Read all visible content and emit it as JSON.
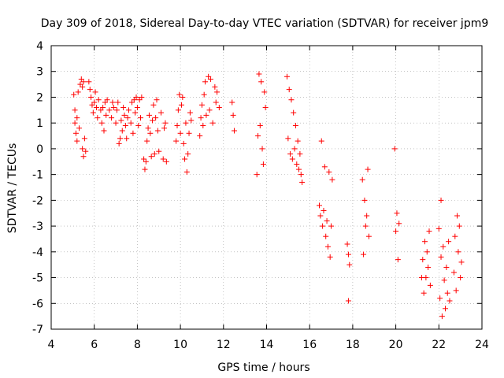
{
  "chart_data": {
    "type": "scatter",
    "title": "Day 309 of 2018, Sidereal Day-to-day VTEC variation (SDTVAR) for receiver jpm9",
    "xlabel": "GPS time / hours",
    "ylabel": "SDTVAR / TECUs",
    "xlim": [
      4,
      24
    ],
    "ylim": [
      -7,
      4
    ],
    "x_ticks": [
      4,
      6,
      8,
      10,
      12,
      14,
      16,
      18,
      20,
      22,
      24
    ],
    "y_ticks": [
      -7,
      -6,
      -5,
      -4,
      -3,
      -2,
      -1,
      0,
      1,
      2,
      3,
      4
    ],
    "grid": true,
    "marker": "+",
    "marker_color": "#ff0000",
    "points": [
      [
        5.05,
        2.1
      ],
      [
        5.1,
        1.5
      ],
      [
        5.1,
        1.0
      ],
      [
        5.15,
        0.6
      ],
      [
        5.2,
        0.3
      ],
      [
        5.2,
        1.2
      ],
      [
        5.25,
        2.2
      ],
      [
        5.3,
        0.8
      ],
      [
        5.35,
        2.5
      ],
      [
        5.4,
        2.7
      ],
      [
        5.45,
        2.4
      ],
      [
        5.45,
        0.0
      ],
      [
        5.5,
        -0.3
      ],
      [
        5.5,
        2.6
      ],
      [
        5.55,
        0.4
      ],
      [
        5.6,
        -0.1
      ],
      [
        5.75,
        2.6
      ],
      [
        5.8,
        2.3
      ],
      [
        5.85,
        2.0
      ],
      [
        5.9,
        1.7
      ],
      [
        5.95,
        1.4
      ],
      [
        6.0,
        1.8
      ],
      [
        6.05,
        2.2
      ],
      [
        6.1,
        1.6
      ],
      [
        6.15,
        1.2
      ],
      [
        6.2,
        1.9
      ],
      [
        6.3,
        1.5
      ],
      [
        6.35,
        1.0
      ],
      [
        6.4,
        1.6
      ],
      [
        6.45,
        0.7
      ],
      [
        6.5,
        1.8
      ],
      [
        6.55,
        1.3
      ],
      [
        6.6,
        1.9
      ],
      [
        6.7,
        1.5
      ],
      [
        6.8,
        1.2
      ],
      [
        6.85,
        1.8
      ],
      [
        6.9,
        1.6
      ],
      [
        7.0,
        1.0
      ],
      [
        7.05,
        1.5
      ],
      [
        7.1,
        1.8
      ],
      [
        7.15,
        0.2
      ],
      [
        7.2,
        0.4
      ],
      [
        7.25,
        1.1
      ],
      [
        7.3,
        0.7
      ],
      [
        7.35,
        1.6
      ],
      [
        7.4,
        1.3
      ],
      [
        7.45,
        0.9
      ],
      [
        7.5,
        0.4
      ],
      [
        7.55,
        1.2
      ],
      [
        7.6,
        1.5
      ],
      [
        7.7,
        1.0
      ],
      [
        7.75,
        1.8
      ],
      [
        7.8,
        0.6
      ],
      [
        7.85,
        1.9
      ],
      [
        7.9,
        1.4
      ],
      [
        7.95,
        2.0
      ],
      [
        8.0,
        1.6
      ],
      [
        8.05,
        0.9
      ],
      [
        8.1,
        1.9
      ],
      [
        8.15,
        1.2
      ],
      [
        8.2,
        2.0
      ],
      [
        8.3,
        -0.4
      ],
      [
        8.35,
        -0.8
      ],
      [
        8.4,
        -0.5
      ],
      [
        8.45,
        0.3
      ],
      [
        8.5,
        0.8
      ],
      [
        8.55,
        1.3
      ],
      [
        8.6,
        0.6
      ],
      [
        8.65,
        -0.3
      ],
      [
        8.7,
        1.1
      ],
      [
        8.75,
        1.7
      ],
      [
        8.8,
        -0.2
      ],
      [
        8.85,
        1.2
      ],
      [
        8.9,
        1.9
      ],
      [
        8.95,
        0.7
      ],
      [
        9.0,
        -0.1
      ],
      [
        9.1,
        1.4
      ],
      [
        9.2,
        -0.4
      ],
      [
        9.25,
        0.8
      ],
      [
        9.3,
        1.0
      ],
      [
        9.35,
        -0.5
      ],
      [
        9.8,
        0.3
      ],
      [
        9.85,
        0.9
      ],
      [
        9.9,
        1.5
      ],
      [
        9.95,
        2.1
      ],
      [
        10.0,
        0.6
      ],
      [
        10.05,
        1.7
      ],
      [
        10.1,
        2.0
      ],
      [
        10.15,
        0.2
      ],
      [
        10.2,
        -0.4
      ],
      [
        10.25,
        1.0
      ],
      [
        10.3,
        -0.9
      ],
      [
        10.35,
        -0.2
      ],
      [
        10.4,
        0.6
      ],
      [
        10.45,
        1.4
      ],
      [
        10.5,
        1.1
      ],
      [
        10.9,
        0.5
      ],
      [
        10.95,
        1.2
      ],
      [
        11.0,
        1.7
      ],
      [
        11.05,
        0.9
      ],
      [
        11.1,
        2.1
      ],
      [
        11.15,
        2.6
      ],
      [
        11.2,
        1.3
      ],
      [
        11.3,
        2.8
      ],
      [
        11.35,
        1.5
      ],
      [
        11.4,
        2.7
      ],
      [
        11.5,
        1.0
      ],
      [
        11.6,
        2.4
      ],
      [
        11.65,
        1.8
      ],
      [
        11.7,
        2.2
      ],
      [
        11.8,
        1.6
      ],
      [
        12.4,
        1.8
      ],
      [
        12.45,
        1.3
      ],
      [
        12.5,
        0.7
      ],
      [
        13.55,
        -1.0
      ],
      [
        13.6,
        0.5
      ],
      [
        13.65,
        2.9
      ],
      [
        13.7,
        0.9
      ],
      [
        13.75,
        2.6
      ],
      [
        13.8,
        0.0
      ],
      [
        13.85,
        -0.6
      ],
      [
        13.9,
        2.2
      ],
      [
        13.95,
        1.6
      ],
      [
        14.95,
        2.8
      ],
      [
        15.0,
        0.4
      ],
      [
        15.05,
        2.3
      ],
      [
        15.1,
        -0.2
      ],
      [
        15.15,
        1.9
      ],
      [
        15.2,
        -0.4
      ],
      [
        15.25,
        1.4
      ],
      [
        15.3,
        0.0
      ],
      [
        15.35,
        0.9
      ],
      [
        15.4,
        -0.6
      ],
      [
        15.45,
        0.3
      ],
      [
        15.5,
        -0.8
      ],
      [
        15.55,
        -0.2
      ],
      [
        15.6,
        -1.0
      ],
      [
        15.65,
        -1.3
      ],
      [
        16.45,
        -2.2
      ],
      [
        16.5,
        -2.6
      ],
      [
        16.55,
        0.3
      ],
      [
        16.6,
        -3.0
      ],
      [
        16.65,
        -2.4
      ],
      [
        16.7,
        -0.7
      ],
      [
        16.75,
        -3.4
      ],
      [
        16.8,
        -2.8
      ],
      [
        16.85,
        -3.8
      ],
      [
        16.9,
        -0.9
      ],
      [
        16.95,
        -4.2
      ],
      [
        17.0,
        -3.0
      ],
      [
        17.05,
        -1.2
      ],
      [
        17.75,
        -3.7
      ],
      [
        17.8,
        -4.1
      ],
      [
        17.85,
        -4.5
      ],
      [
        17.8,
        -5.9
      ],
      [
        18.45,
        -1.2
      ],
      [
        18.5,
        -4.1
      ],
      [
        18.55,
        -2.0
      ],
      [
        18.6,
        -3.0
      ],
      [
        18.65,
        -2.6
      ],
      [
        18.7,
        -0.8
      ],
      [
        18.75,
        -3.4
      ],
      [
        19.95,
        0.0
      ],
      [
        20.0,
        -3.2
      ],
      [
        20.05,
        -2.5
      ],
      [
        20.1,
        -4.3
      ],
      [
        20.15,
        -2.9
      ],
      [
        21.2,
        -5.0
      ],
      [
        21.25,
        -4.3
      ],
      [
        21.3,
        -5.6
      ],
      [
        21.35,
        -3.6
      ],
      [
        21.4,
        -5.0
      ],
      [
        21.45,
        -4.0
      ],
      [
        21.5,
        -4.6
      ],
      [
        21.55,
        -3.2
      ],
      [
        21.6,
        -5.3
      ],
      [
        22.0,
        -3.1
      ],
      [
        22.05,
        -5.8
      ],
      [
        22.1,
        -4.2
      ],
      [
        22.1,
        -2.0
      ],
      [
        22.15,
        -6.5
      ],
      [
        22.2,
        -3.8
      ],
      [
        22.25,
        -5.1
      ],
      [
        22.3,
        -6.2
      ],
      [
        22.35,
        -4.6
      ],
      [
        22.4,
        -5.6
      ],
      [
        22.45,
        -3.6
      ],
      [
        22.5,
        -5.9
      ],
      [
        22.7,
        -4.8
      ],
      [
        22.75,
        -3.4
      ],
      [
        22.8,
        -5.5
      ],
      [
        22.85,
        -2.6
      ],
      [
        22.9,
        -4.0
      ],
      [
        22.95,
        -3.0
      ],
      [
        23.0,
        -5.0
      ],
      [
        23.05,
        -4.4
      ]
    ]
  }
}
